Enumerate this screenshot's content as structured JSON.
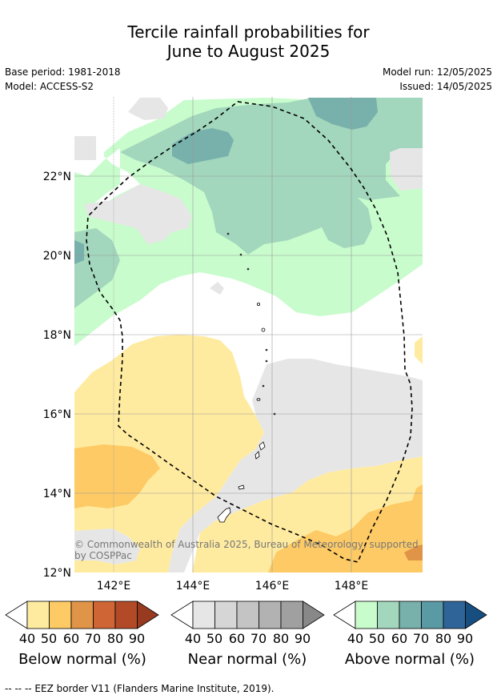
{
  "title_line1": "Tercile rainfall probabilities for",
  "title_line2": "June to August 2025",
  "base_period": "Base period: 1981-2018",
  "model": "Model: ACCESS-S2",
  "model_run": "Model run: 12/05/2025",
  "issued": "Issued: 14/05/2025",
  "lat_labels": [
    "22°N",
    "20°N",
    "18°N",
    "16°N",
    "14°N",
    "12°N"
  ],
  "lon_labels": [
    "142°E",
    "144°E",
    "146°E",
    "148°E"
  ],
  "copyright_line1": "© Commonwealth of Australia 2025, Bureau of Meteorology, supported",
  "copyright_line2": "by COSPPac",
  "colorbars": [
    {
      "title": "Below normal (%)",
      "ticks": [
        "40",
        "50",
        "60",
        "70",
        "80",
        "90"
      ],
      "colors": [
        "#ffeba0",
        "#fdca65",
        "#e09448",
        "#cf6535",
        "#b24a28",
        "#983a20"
      ]
    },
    {
      "title": "Near normal (%)",
      "ticks": [
        "40",
        "50",
        "60",
        "70",
        "80",
        "90"
      ],
      "colors": [
        "#e6e6e6",
        "#d6d6d6",
        "#c4c4c4",
        "#b2b2b2",
        "#a0a0a0",
        "#888888"
      ]
    },
    {
      "title": "Above normal (%)",
      "ticks": [
        "40",
        "50",
        "60",
        "70",
        "80",
        "90"
      ],
      "colors": [
        "#c8fccc",
        "#a2d6bd",
        "#78b0ab",
        "#5a9aa4",
        "#2f6498",
        "#174e80"
      ]
    }
  ],
  "footnote": "--  --  -- EEZ border V11 (Flanders Marine Institute, 2019)."
}
